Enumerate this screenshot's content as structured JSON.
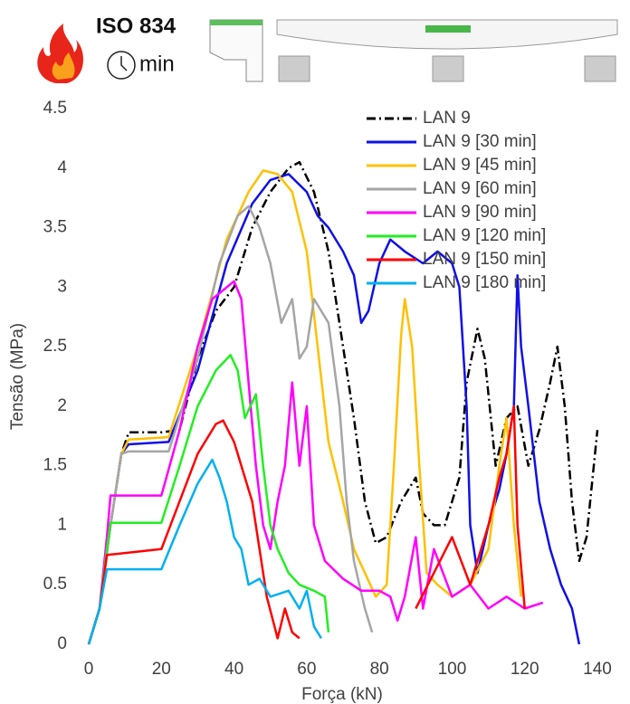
{
  "chart_data": {
    "type": "line",
    "annotations": [
      "ISO 834",
      "min"
    ],
    "xlabel": "Força (kN)",
    "ylabel": "Tensão (MPa)",
    "xlim": [
      0,
      140
    ],
    "xticks": [
      0,
      20,
      40,
      60,
      80,
      100,
      120,
      140
    ],
    "ylim": [
      0,
      4.5
    ],
    "yticks": [
      0,
      0.5,
      1,
      1.5,
      2,
      2.5,
      3,
      3.5,
      4,
      4.5
    ],
    "grid": false,
    "legend": "upper right",
    "series": [
      {
        "name": "LAN 9",
        "color": "#000000",
        "line_style": "dashdot",
        "x": [
          0,
          3,
          6,
          9,
          11,
          20,
          25,
          30,
          35,
          40,
          45,
          50,
          55,
          58,
          62,
          66,
          70,
          73,
          76,
          79,
          82,
          86,
          90,
          92,
          95,
          98,
          102,
          104,
          107,
          109,
          112,
          115,
          118,
          121,
          124,
          127,
          129,
          131,
          133,
          135,
          137,
          139,
          140
        ],
        "values": [
          0,
          0.3,
          1.0,
          1.6,
          1.78,
          1.78,
          1.8,
          2.4,
          2.8,
          3.0,
          3.5,
          3.8,
          4.0,
          4.05,
          3.8,
          3.3,
          2.5,
          1.9,
          1.2,
          0.85,
          0.9,
          1.2,
          1.4,
          1.1,
          1.0,
          1.0,
          1.4,
          2.2,
          2.65,
          2.4,
          1.5,
          1.9,
          2.0,
          1.5,
          1.8,
          2.2,
          2.5,
          2.0,
          1.2,
          0.7,
          0.9,
          1.5,
          1.8
        ]
      },
      {
        "name": "LAN 9 [30 min]",
        "color": "#1010e8",
        "line_style": "solid",
        "x": [
          0,
          3,
          6,
          9,
          11,
          22,
          30,
          38,
          45,
          50,
          55,
          60,
          63,
          66,
          70,
          73,
          75,
          77,
          80,
          83,
          87,
          92,
          96,
          100,
          102,
          104,
          105,
          107,
          110,
          113,
          115,
          117,
          118,
          119,
          121,
          124,
          127,
          130,
          133,
          135
        ],
        "values": [
          0,
          0.3,
          1.0,
          1.6,
          1.68,
          1.7,
          2.3,
          3.2,
          3.7,
          3.9,
          3.95,
          3.8,
          3.6,
          3.5,
          3.3,
          3.1,
          2.7,
          2.8,
          3.2,
          3.4,
          3.3,
          3.2,
          3.3,
          3.2,
          3.0,
          2.0,
          1.0,
          0.6,
          1.0,
          1.3,
          1.6,
          2.0,
          3.1,
          2.5,
          2.0,
          1.2,
          0.8,
          0.5,
          0.3,
          0
        ]
      },
      {
        "name": "LAN 9 [45 min]",
        "color": "#ffc000",
        "line_style": "solid",
        "x": [
          0,
          3,
          6,
          9,
          11,
          22,
          30,
          38,
          44,
          48,
          52,
          56,
          60,
          63,
          66,
          70,
          73,
          76,
          79,
          82,
          84,
          86,
          87,
          89,
          91,
          93,
          96,
          100,
          105,
          110,
          113,
          115,
          117,
          119
        ],
        "values": [
          0,
          0.3,
          1.0,
          1.6,
          1.72,
          1.74,
          2.5,
          3.4,
          3.8,
          3.98,
          3.95,
          3.8,
          3.3,
          2.5,
          1.7,
          1.2,
          0.8,
          0.6,
          0.4,
          0.5,
          1.5,
          2.6,
          2.9,
          2.5,
          1.5,
          0.6,
          0.5,
          0.4,
          0.5,
          0.8,
          1.5,
          1.9,
          1.0,
          0.4
        ]
      },
      {
        "name": "LAN 9 [60 min]",
        "color": "#a5a5a5",
        "line_style": "solid",
        "x": [
          0,
          3,
          6,
          9,
          11,
          22,
          30,
          36,
          41,
          44,
          47,
          50,
          53,
          56,
          58,
          60,
          62,
          64,
          66,
          69,
          71,
          73,
          76,
          78
        ],
        "values": [
          0,
          0.3,
          1.0,
          1.6,
          1.62,
          1.62,
          2.4,
          3.2,
          3.6,
          3.68,
          3.5,
          3.2,
          2.7,
          2.9,
          2.4,
          2.5,
          2.9,
          2.8,
          2.7,
          2.0,
          1.2,
          0.7,
          0.3,
          0.1
        ]
      },
      {
        "name": "LAN 9 [90 min]",
        "color": "#ff00ff",
        "line_style": "solid",
        "x": [
          0,
          3,
          5,
          6,
          20,
          25,
          30,
          34,
          40,
          42,
          44,
          46,
          48,
          50,
          52,
          54,
          56,
          58,
          60,
          62,
          65,
          70,
          75,
          80,
          83,
          85,
          87,
          90,
          92,
          95,
          100,
          105,
          110,
          115,
          120,
          125
        ],
        "values": [
          0,
          0.3,
          0.9,
          1.25,
          1.25,
          1.8,
          2.5,
          2.9,
          3.05,
          2.9,
          2.2,
          1.5,
          1.0,
          0.8,
          1.2,
          1.5,
          2.2,
          1.5,
          2.0,
          1.0,
          0.7,
          0.55,
          0.45,
          0.45,
          0.4,
          0.2,
          0.4,
          0.9,
          0.3,
          0.8,
          0.4,
          0.5,
          0.3,
          0.4,
          0.3,
          0.35
        ]
      },
      {
        "name": "LAN 9 [120 min]",
        "color": "#22ee22",
        "line_style": "solid",
        "x": [
          0,
          3,
          5,
          6,
          20,
          25,
          30,
          35,
          39,
          41,
          43,
          46,
          48,
          50,
          52,
          55,
          58,
          62,
          65,
          66
        ],
        "values": [
          0,
          0.3,
          0.8,
          1.02,
          1.02,
          1.5,
          2.0,
          2.3,
          2.43,
          2.3,
          1.9,
          2.1,
          1.5,
          1.0,
          0.8,
          0.6,
          0.5,
          0.45,
          0.4,
          0.1
        ]
      },
      {
        "name": "LAN 9 [150 min]",
        "color": "#ff0000",
        "line_style": "solid",
        "x": [
          0,
          3,
          5,
          20,
          25,
          30,
          35,
          37,
          40,
          42,
          45,
          47,
          49,
          52,
          54,
          56,
          58,
          75,
          90,
          95,
          100,
          105,
          110,
          113,
          115,
          117,
          118,
          120
        ],
        "values": [
          0,
          0.3,
          0.75,
          0.8,
          1.2,
          1.6,
          1.85,
          1.88,
          1.7,
          1.5,
          1.2,
          0.8,
          0.4,
          0.05,
          0.3,
          0.1,
          0.05,
          null,
          0.3,
          0.6,
          0.9,
          0.5,
          1.0,
          1.4,
          1.6,
          2.0,
          1.0,
          0.3
        ]
      },
      {
        "name": "LAN 9 [180 min]",
        "color": "#00b0f0",
        "line_style": "solid",
        "x": [
          0,
          3,
          5,
          20,
          25,
          30,
          34,
          36,
          38,
          40,
          42,
          44,
          47,
          50,
          55,
          58,
          60,
          62,
          64
        ],
        "values": [
          0,
          0.3,
          0.63,
          0.63,
          1.0,
          1.35,
          1.55,
          1.4,
          1.2,
          0.9,
          0.8,
          0.5,
          0.55,
          0.4,
          0.45,
          0.3,
          0.45,
          0.15,
          0.05
        ]
      }
    ]
  }
}
